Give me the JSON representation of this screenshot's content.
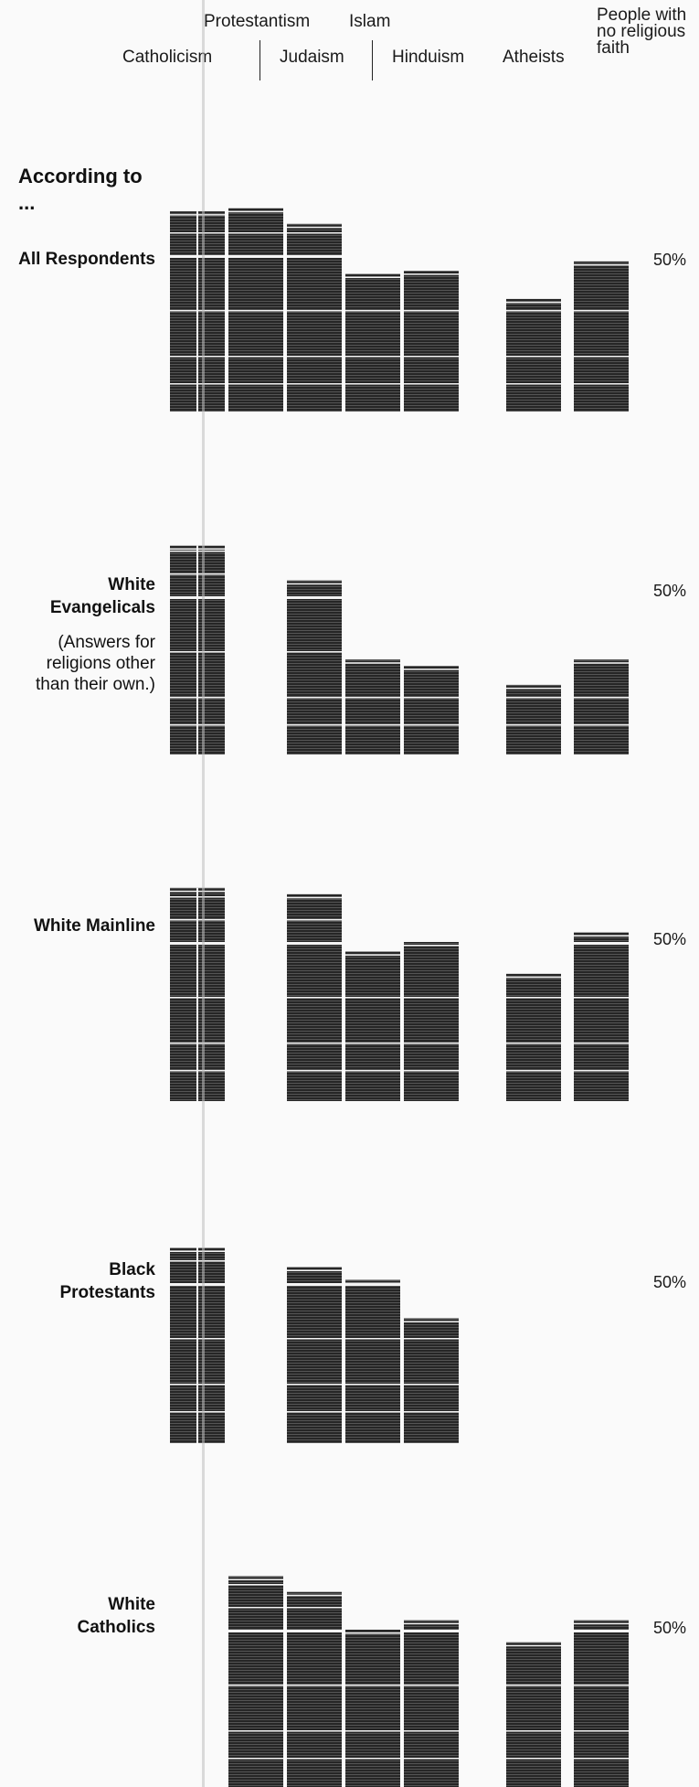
{
  "chart_data": {
    "type": "bar",
    "heading": "According to ...",
    "categories": [
      "Catholicism",
      "Protestantism",
      "Judaism",
      "Islam",
      "Hinduism",
      "Atheists",
      "People with no religious faith"
    ],
    "reference_line_label": "50%",
    "reference_value": 50,
    "groups": [
      {
        "label": "All Respondents",
        "note": "",
        "values": [
          64,
          65,
          60,
          44,
          45,
          36,
          48
        ]
      },
      {
        "label": "White Evangelicals",
        "note": "(Answers for religions other than their own.)",
        "values": [
          66,
          null,
          55,
          30,
          28,
          22,
          30
        ]
      },
      {
        "label": "White Mainline",
        "note": "",
        "values": [
          67,
          null,
          65,
          47,
          50,
          40,
          53
        ]
      },
      {
        "label": "Black Protestants",
        "note": "",
        "values": [
          61,
          null,
          55,
          51,
          39,
          null,
          null
        ]
      },
      {
        "label": "White Catholics",
        "note": "",
        "values": [
          null,
          67,
          62,
          50,
          53,
          46,
          53
        ]
      }
    ]
  }
}
